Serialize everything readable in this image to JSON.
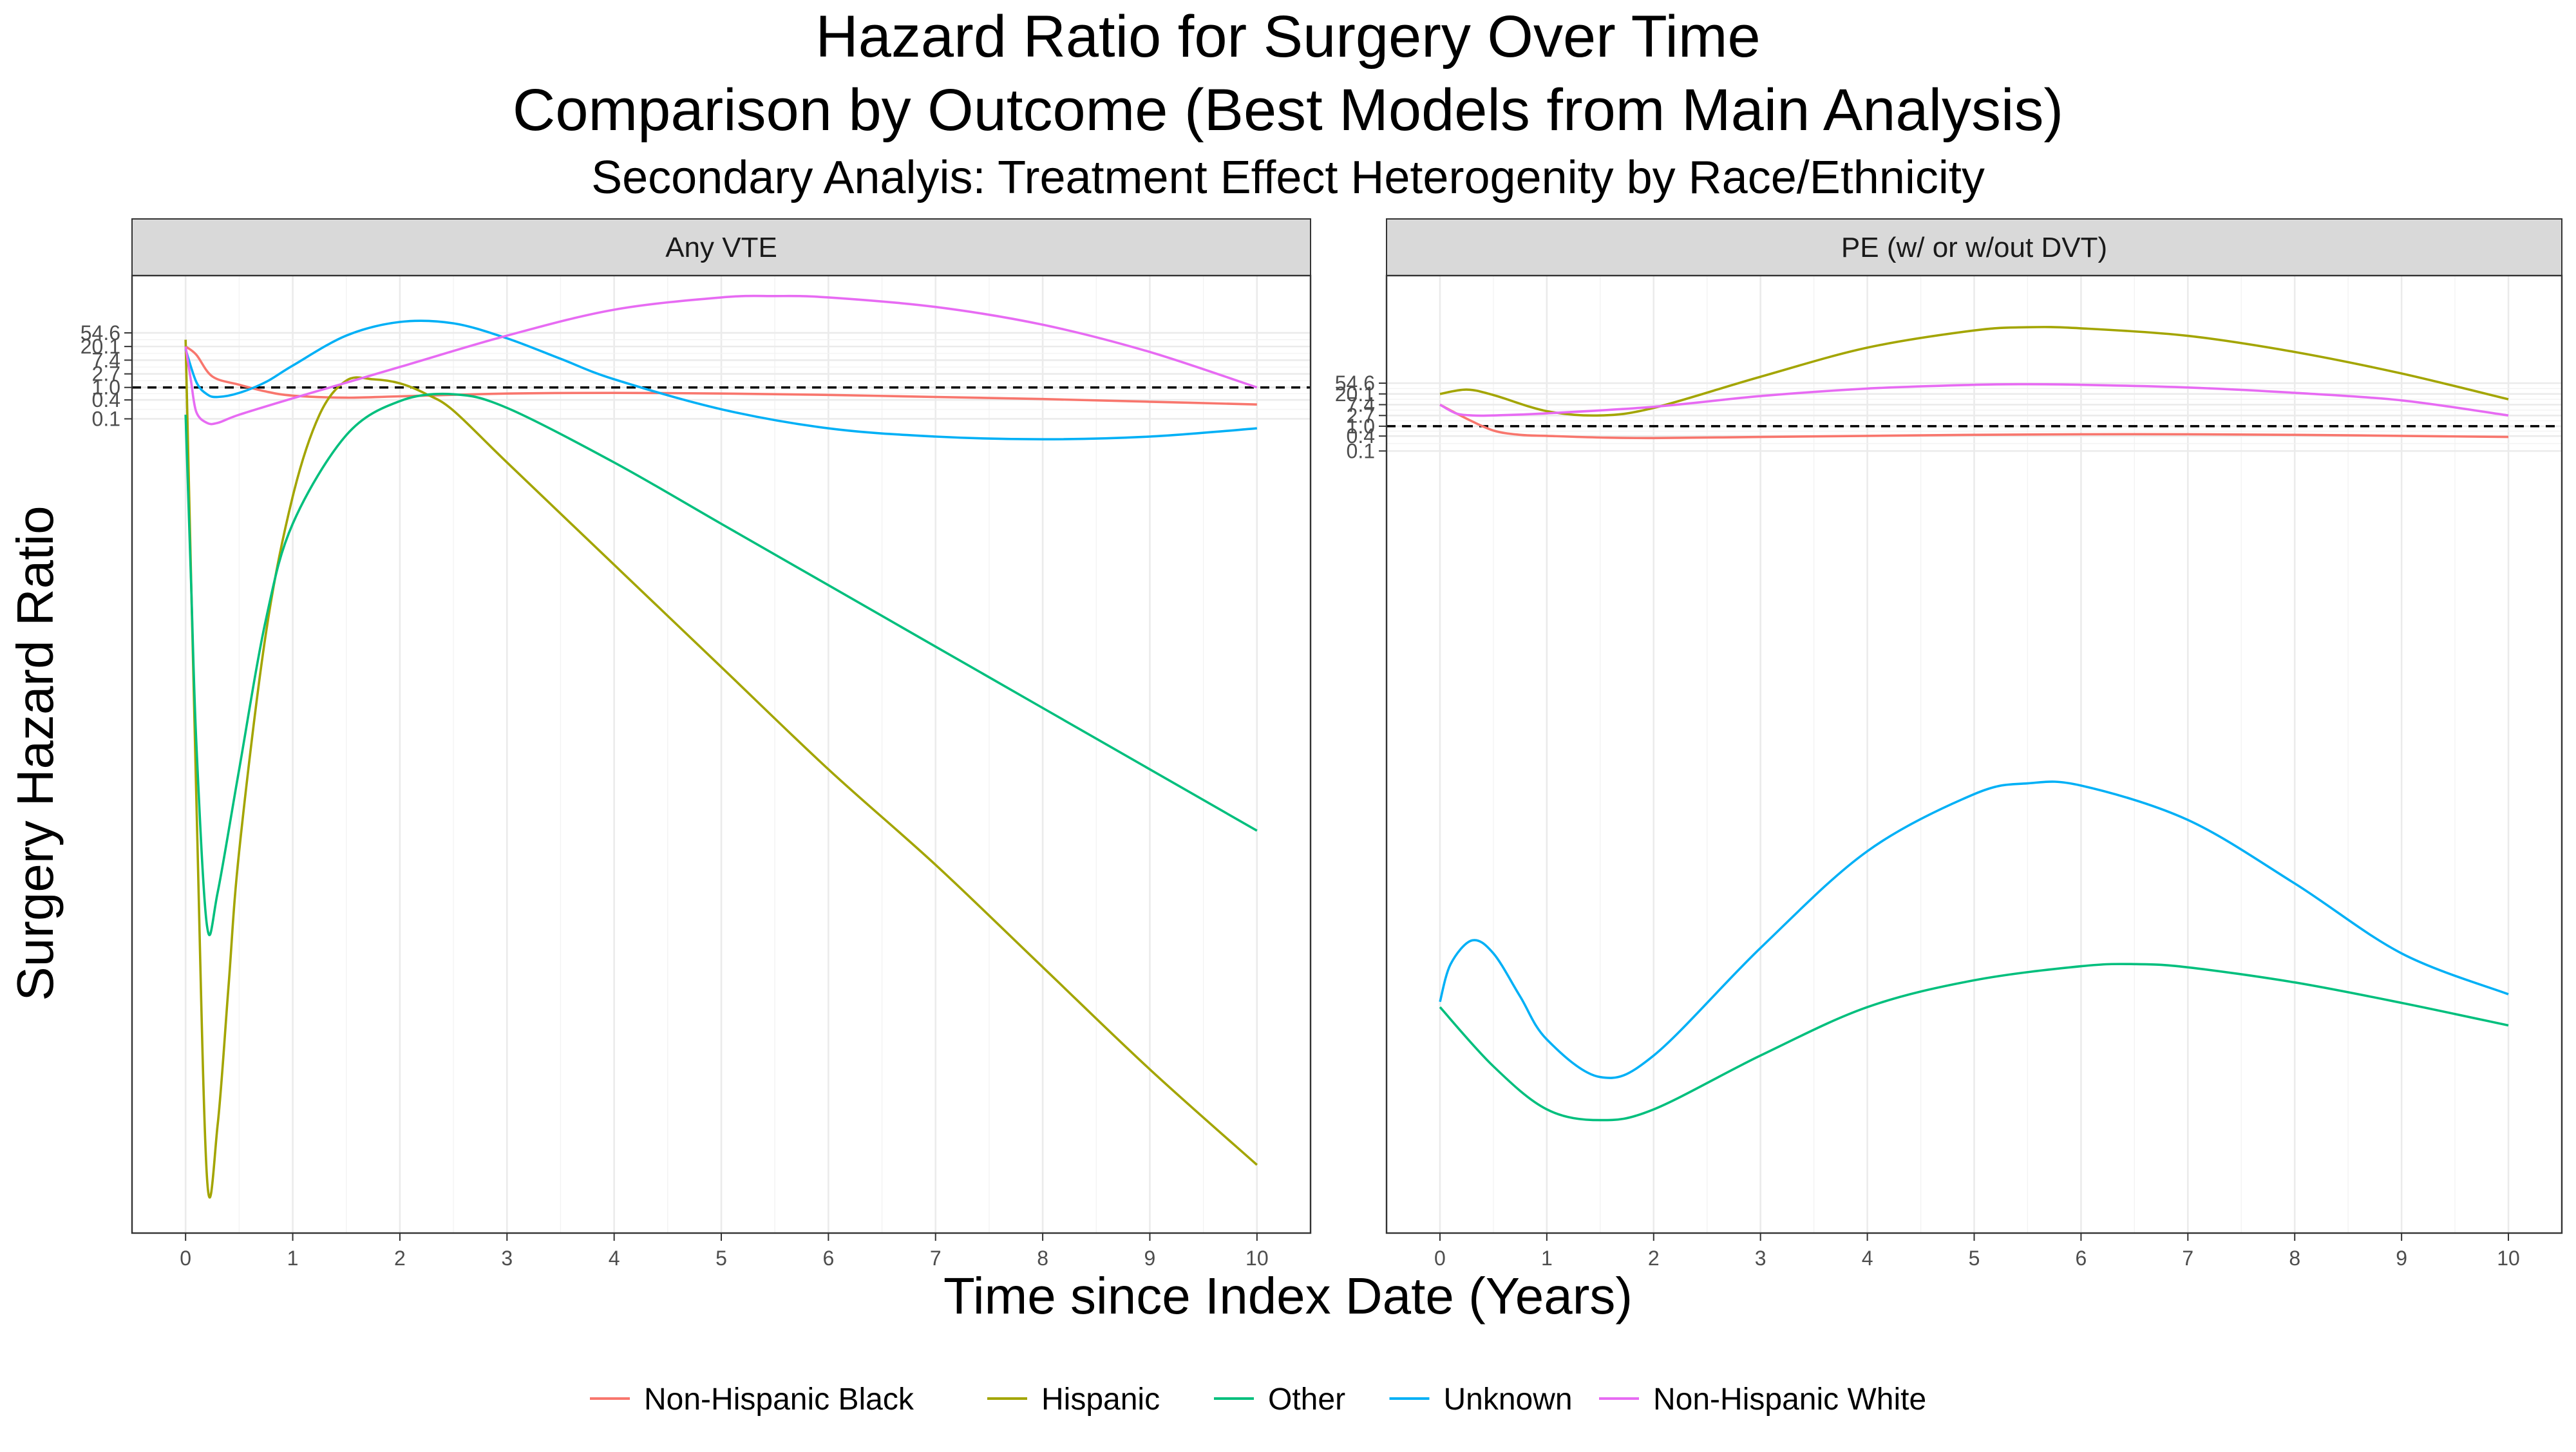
{
  "title": "Hazard Ratio for Surgery Over Time",
  "title2": "Comparison by Outcome (Best Models from Main Analysis)",
  "subtitle": "Secondary Analyis: Treatment Effect Heterogenity by Race/Ethnicity",
  "xlabel": "Time since Index Date (Years)",
  "ylabel": "Surgery Hazard Ratio",
  "colors": {
    "Non-Hispanic Black": "#F8766D",
    "Hispanic": "#A3A500",
    "Other": "#00BF7D",
    "Unknown": "#00B0F6",
    "Non-Hispanic White": "#E76BF3",
    "reference_line": "#000000"
  },
  "legend": {
    "position": "bottom",
    "items": [
      "Non-Hispanic Black",
      "Hispanic",
      "Other",
      "Unknown",
      "Non-Hispanic White"
    ]
  },
  "chart_data": [
    {
      "type": "line",
      "panel": "Any VTE",
      "x_ticks": [
        0,
        1,
        2,
        3,
        4,
        5,
        6,
        7,
        8,
        9,
        10
      ],
      "y_scale": "log",
      "y_ticks": [
        0.1,
        0.4,
        1.0,
        2.7,
        7.4,
        20.1,
        54.6
      ],
      "y_tick_labels": [
        "0.1",
        "0.4",
        "1.0",
        "2.7",
        "7.4",
        "20.1",
        "54.6"
      ],
      "xlim": [
        -0.5,
        10.5
      ],
      "ylog_range": [
        -62,
        8.2
      ],
      "reference_line": 1.0,
      "grid": true,
      "series": [
        {
          "name": "Non-Hispanic Black",
          "x": [
            0,
            0.1,
            0.25,
            0.5,
            0.75,
            1,
            1.5,
            2,
            3,
            4,
            5,
            6,
            7,
            8,
            9,
            10
          ],
          "logy": [
            3,
            2.4,
            0.8,
            0.2,
            -0.3,
            -0.6,
            -0.75,
            -0.65,
            -0.45,
            -0.4,
            -0.45,
            -0.55,
            -0.7,
            -0.85,
            -1.05,
            -1.25
          ]
        },
        {
          "name": "Hispanic",
          "x": [
            0,
            0.1,
            0.2,
            0.3,
            0.4,
            0.5,
            0.75,
            1,
            1.25,
            1.5,
            1.75,
            2,
            2.25,
            2.5,
            3,
            4,
            5,
            6,
            7,
            8,
            9,
            10
          ],
          "logy": [
            3.5,
            -30,
            -58,
            -54,
            -44,
            -34,
            -18,
            -8,
            -2,
            0.5,
            0.6,
            0.3,
            -0.5,
            -1.7,
            -5.5,
            -13,
            -20.5,
            -28,
            -35,
            -42.5,
            -50,
            -57
          ]
        },
        {
          "name": "Other",
          "x": [
            0,
            0.05,
            0.1,
            0.2,
            0.3,
            0.5,
            0.75,
            1,
            1.5,
            2,
            2.5,
            3,
            4,
            5,
            6,
            7,
            8,
            9,
            10
          ],
          "logy": [
            -2,
            -14,
            -26,
            -39.5,
            -37,
            -28,
            -17,
            -10,
            -3.5,
            -1,
            -0.5,
            -1.5,
            -5.5,
            -10,
            -14.5,
            -19,
            -23.5,
            -28,
            -32.5
          ]
        },
        {
          "name": "Unknown",
          "x": [
            0,
            0.1,
            0.2,
            0.3,
            0.5,
            0.75,
            1,
            1.5,
            2,
            2.5,
            3,
            3.5,
            4,
            5,
            6,
            7,
            8,
            9,
            10
          ],
          "logy": [
            2.8,
            0.4,
            -0.5,
            -0.7,
            -0.4,
            0.4,
            1.6,
            3.8,
            4.8,
            4.7,
            3.6,
            2.1,
            0.6,
            -1.6,
            -3,
            -3.6,
            -3.8,
            -3.6,
            -3
          ]
        },
        {
          "name": "Non-Hispanic White",
          "x": [
            0,
            0.05,
            0.1,
            0.2,
            0.3,
            0.5,
            1,
            2,
            3,
            4,
            5,
            5.5,
            6,
            7,
            8,
            9,
            10
          ],
          "logy": [
            3,
            0.5,
            -1.8,
            -2.6,
            -2.6,
            -2,
            -0.8,
            1.5,
            3.8,
            5.7,
            6.6,
            6.7,
            6.6,
            5.9,
            4.6,
            2.6,
            0
          ]
        }
      ]
    },
    {
      "type": "line",
      "panel": "PE (w/ or w/out DVT)",
      "x_ticks": [
        0,
        1,
        2,
        3,
        4,
        5,
        6,
        7,
        8,
        9,
        10
      ],
      "y_scale": "log",
      "y_ticks": [
        0.1,
        0.4,
        1.0,
        2.7,
        7.4,
        20.1,
        54.6
      ],
      "y_tick_labels": [
        "0.1",
        "0.4",
        "1.0",
        "2.7",
        "7.4",
        "20.1",
        "54.6"
      ],
      "xlim": [
        -0.5,
        10.5
      ],
      "ylog_range": [
        -75,
        14
      ],
      "reference_line": 1.0,
      "grid": true,
      "series": [
        {
          "name": "Non-Hispanic Black",
          "x": [
            0,
            0.25,
            0.5,
            0.75,
            1,
            1.5,
            2,
            3,
            4,
            5,
            6,
            7,
            8,
            9,
            10
          ],
          "logy": [
            2,
            0.7,
            -0.4,
            -0.8,
            -0.9,
            -1.05,
            -1.1,
            -1.0,
            -0.9,
            -0.8,
            -0.75,
            -0.75,
            -0.8,
            -0.9,
            -1.0
          ]
        },
        {
          "name": "Hispanic",
          "x": [
            0,
            0.25,
            0.5,
            1,
            1.5,
            2,
            3,
            4,
            5,
            5.5,
            6,
            7,
            8,
            9,
            10
          ],
          "logy": [
            3,
            3.4,
            2.9,
            1.4,
            1.0,
            1.7,
            4.6,
            7.3,
            8.9,
            9.2,
            9.1,
            8.4,
            6.9,
            4.9,
            2.5
          ]
        },
        {
          "name": "Other",
          "x": [
            0,
            0.5,
            1,
            1.5,
            2,
            3,
            4,
            5,
            6,
            6.5,
            7,
            8,
            9,
            10
          ],
          "logy": [
            -54,
            -59.5,
            -63.5,
            -64.5,
            -63.5,
            -58.5,
            -54,
            -51.5,
            -50.2,
            -50,
            -50.3,
            -51.7,
            -53.6,
            -55.7
          ]
        },
        {
          "name": "Unknown",
          "x": [
            0,
            0.1,
            0.3,
            0.5,
            0.75,
            1,
            1.5,
            2,
            3,
            4,
            5,
            5.5,
            6,
            7,
            8,
            9,
            10
          ],
          "logy": [
            -53.5,
            -50,
            -47.8,
            -49,
            -53,
            -57,
            -60.5,
            -58.5,
            -48.5,
            -39.5,
            -34.2,
            -33.2,
            -33.4,
            -36.6,
            -42.5,
            -49,
            -52.8
          ]
        },
        {
          "name": "Non-Hispanic White",
          "x": [
            0,
            0.15,
            0.3,
            0.5,
            1,
            2,
            3,
            4,
            5,
            5.5,
            6,
            7,
            8,
            9,
            10
          ],
          "logy": [
            2,
            1.2,
            1.0,
            1.0,
            1.2,
            1.8,
            2.8,
            3.5,
            3.85,
            3.9,
            3.85,
            3.6,
            3.1,
            2.4,
            1.0
          ]
        }
      ]
    }
  ]
}
